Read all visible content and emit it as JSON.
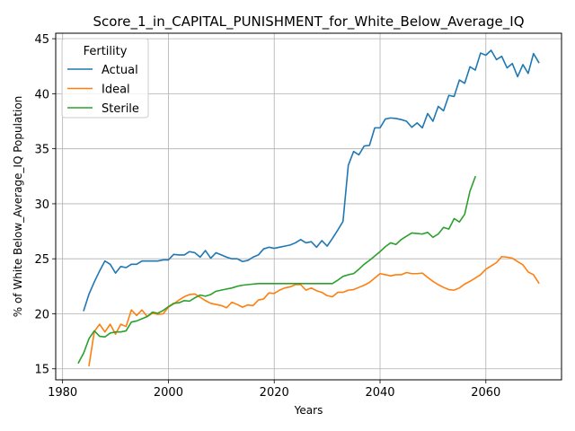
{
  "chart_data": {
    "type": "line",
    "title": "Score_1_in_CAPITAL_PUNISHMENT_for_White_Below_Average_IQ",
    "xlabel": "Years",
    "ylabel": "% of White Below_Average_IQ Population",
    "xlim": [
      1978.7,
      2074.3
    ],
    "ylim": [
      14.0,
      45.5
    ],
    "xticks": [
      1980,
      2000,
      2020,
      2040,
      2060
    ],
    "yticks": [
      15,
      20,
      25,
      30,
      35,
      40,
      45
    ],
    "grid": true,
    "legend": {
      "title": "Fertility",
      "placement": "top-left"
    },
    "series": [
      {
        "name": "Actual",
        "color": "#1f77b4",
        "x": [
          1984,
          1985,
          1986,
          1987,
          1988,
          1989,
          1990,
          1991,
          1992,
          1993,
          1994,
          1995,
          1996,
          1997,
          1998,
          1999,
          2000,
          2001,
          2002,
          2003,
          2004,
          2005,
          2006,
          2007,
          2008,
          2009,
          2010,
          2011,
          2012,
          2013,
          2014,
          2015,
          2016,
          2017,
          2018,
          2019,
          2020,
          2021,
          2022,
          2023,
          2024,
          2025,
          2026,
          2027,
          2028,
          2029,
          2030,
          2031,
          2032,
          2033,
          2034,
          2035,
          2036,
          2037,
          2038,
          2039,
          2040,
          2041,
          2042,
          2043,
          2044,
          2045,
          2046,
          2047,
          2048,
          2049,
          2050,
          2051,
          2052,
          2053,
          2054,
          2055,
          2056,
          2057,
          2058,
          2059,
          2060,
          2061,
          2062,
          2063,
          2064,
          2065,
          2066,
          2067,
          2068,
          2069,
          2070
        ],
        "y": [
          20.3,
          21.8,
          22.9,
          23.9,
          24.8,
          24.5,
          23.7,
          24.3,
          24.2,
          24.5,
          24.5,
          24.8,
          24.8,
          24.8,
          24.8,
          24.9,
          24.9,
          25.4,
          25.35,
          25.35,
          25.65,
          25.55,
          25.15,
          25.75,
          25.05,
          25.55,
          25.35,
          25.15,
          25.0,
          25.0,
          24.75,
          24.85,
          25.15,
          25.35,
          25.9,
          26.05,
          25.95,
          26.05,
          26.15,
          26.25,
          26.45,
          26.75,
          26.45,
          26.55,
          26.05,
          26.65,
          26.15,
          26.85,
          27.6,
          28.4,
          33.5,
          34.75,
          34.45,
          35.25,
          35.3,
          36.9,
          36.9,
          37.7,
          37.8,
          37.75,
          37.65,
          37.5,
          36.95,
          37.35,
          36.9,
          38.2,
          37.5,
          38.85,
          38.45,
          39.85,
          39.75,
          41.25,
          40.95,
          42.45,
          42.15,
          43.7,
          43.5,
          43.95,
          43.1,
          43.4,
          42.35,
          42.75,
          41.55,
          42.65,
          41.85,
          43.65,
          42.85
        ]
      },
      {
        "name": "Ideal",
        "color": "#ff7f0e",
        "x": [
          1985,
          1986,
          1987,
          1988,
          1989,
          1990,
          1991,
          1992,
          1993,
          1994,
          1995,
          1996,
          1997,
          1998,
          1999,
          2000,
          2001,
          2002,
          2003,
          2004,
          2005,
          2006,
          2007,
          2008,
          2009,
          2010,
          2011,
          2012,
          2013,
          2014,
          2015,
          2016,
          2017,
          2018,
          2019,
          2020,
          2021,
          2022,
          2023,
          2024,
          2025,
          2026,
          2027,
          2028,
          2029,
          2030,
          2031,
          2032,
          2033,
          2034,
          2035,
          2036,
          2037,
          2038,
          2039,
          2040,
          2041,
          2042,
          2043,
          2044,
          2045,
          2046,
          2047,
          2048,
          2049,
          2050,
          2051,
          2052,
          2053,
          2054,
          2055,
          2056,
          2057,
          2058,
          2059,
          2060,
          2061,
          2062,
          2063,
          2064,
          2065,
          2066,
          2067,
          2068,
          2069,
          2070
        ],
        "y": [
          15.3,
          18.4,
          19.05,
          18.35,
          19.05,
          18.15,
          19.05,
          18.85,
          20.35,
          19.85,
          20.35,
          19.75,
          20.05,
          19.95,
          20.0,
          20.6,
          20.9,
          21.25,
          21.55,
          21.75,
          21.8,
          21.5,
          21.2,
          20.95,
          20.85,
          20.75,
          20.55,
          21.05,
          20.85,
          20.6,
          20.8,
          20.75,
          21.25,
          21.35,
          21.9,
          21.85,
          22.15,
          22.35,
          22.45,
          22.65,
          22.65,
          22.15,
          22.35,
          22.1,
          21.95,
          21.65,
          21.55,
          21.95,
          21.95,
          22.15,
          22.2,
          22.4,
          22.6,
          22.85,
          23.25,
          23.65,
          23.55,
          23.45,
          23.55,
          23.55,
          23.75,
          23.65,
          23.65,
          23.7,
          23.3,
          22.95,
          22.65,
          22.4,
          22.2,
          22.15,
          22.35,
          22.7,
          22.95,
          23.25,
          23.55,
          24.05,
          24.35,
          24.65,
          25.2,
          25.15,
          25.05,
          24.75,
          24.45,
          23.8,
          23.55,
          22.8
        ]
      },
      {
        "name": "Sterile",
        "color": "#2ca02c",
        "x": [
          1983,
          1984,
          1985,
          1986,
          1987,
          1988,
          1989,
          1990,
          1991,
          1992,
          1993,
          1994,
          1995,
          1996,
          1997,
          1998,
          1999,
          2000,
          2001,
          2002,
          2003,
          2004,
          2005,
          2006,
          2007,
          2008,
          2009,
          2010,
          2011,
          2012,
          2013,
          2014,
          2015,
          2016,
          2017,
          2018,
          2019,
          2020,
          2021,
          2022,
          2023,
          2024,
          2025,
          2026,
          2027,
          2028,
          2029,
          2030,
          2031,
          2032,
          2033,
          2034,
          2035,
          2036,
          2037,
          2038,
          2039,
          2040,
          2041,
          2042,
          2043,
          2044,
          2045,
          2046,
          2047,
          2048,
          2049,
          2050,
          2051,
          2052,
          2053,
          2054,
          2055,
          2056,
          2057,
          2058
        ],
        "y": [
          15.55,
          16.45,
          17.75,
          18.45,
          17.95,
          17.9,
          18.25,
          18.35,
          18.35,
          18.45,
          19.25,
          19.35,
          19.55,
          19.75,
          20.15,
          20.05,
          20.3,
          20.65,
          20.95,
          21.0,
          21.2,
          21.15,
          21.45,
          21.7,
          21.6,
          21.75,
          22.05,
          22.15,
          22.25,
          22.35,
          22.5,
          22.6,
          22.65,
          22.7,
          22.75,
          22.75,
          22.75,
          22.75,
          22.75,
          22.75,
          22.75,
          22.75,
          22.75,
          22.75,
          22.75,
          22.75,
          22.75,
          22.75,
          22.75,
          23.05,
          23.4,
          23.55,
          23.65,
          24.05,
          24.5,
          24.85,
          25.25,
          25.65,
          26.1,
          26.45,
          26.3,
          26.75,
          27.05,
          27.35,
          27.3,
          27.25,
          27.4,
          26.95,
          27.25,
          27.85,
          27.7,
          28.65,
          28.35,
          29.05,
          31.15,
          32.45
        ]
      }
    ]
  }
}
